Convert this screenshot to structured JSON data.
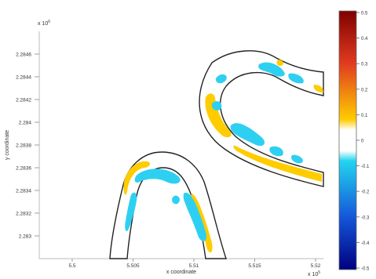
{
  "chart_data": {
    "type": "heatmap",
    "title": "",
    "xlabel": "x coordinate",
    "ylabel": "y coordinate",
    "x_exponent_label": "x 10",
    "x_exponent_power": "5",
    "y_exponent_label": "x 10",
    "y_exponent_power": "6",
    "x_ticks": [
      "5.5",
      "5.505",
      "5.51",
      "5.515",
      "5.52"
    ],
    "y_ticks": [
      "2.2846",
      "2.2844",
      "2.2842",
      "2.284",
      "2.2838",
      "2.2836",
      "2.2834",
      "2.2832",
      "2.283"
    ],
    "xlim": [
      5.4985,
      5.5235
    ],
    "ylim": [
      2.28284,
      2.28478
    ],
    "grid": false,
    "colorbar": {
      "placement": "right",
      "ticks": [
        "0.5",
        "0.4",
        "0.3",
        "0.2",
        "0.1",
        "0",
        "-0.1",
        "-0.2",
        "-0.3",
        "-0.4",
        "-0.5"
      ],
      "range": [
        -0.5,
        0.5
      ],
      "colors": {
        "max": "#800000",
        "high": "#e03a20",
        "mid_high": "#ffcc00",
        "zero": "#ffffff",
        "mid_low": "#22d4f0",
        "low": "#1455d8",
        "min": "#000080"
      }
    },
    "channel_outline_color": "#222222",
    "channel_fill_color": "#ffffff",
    "regions": [
      {
        "sign": "positive",
        "color": "#ffcc00"
      },
      {
        "sign": "negative",
        "color": "#2ed0f2"
      }
    ]
  }
}
